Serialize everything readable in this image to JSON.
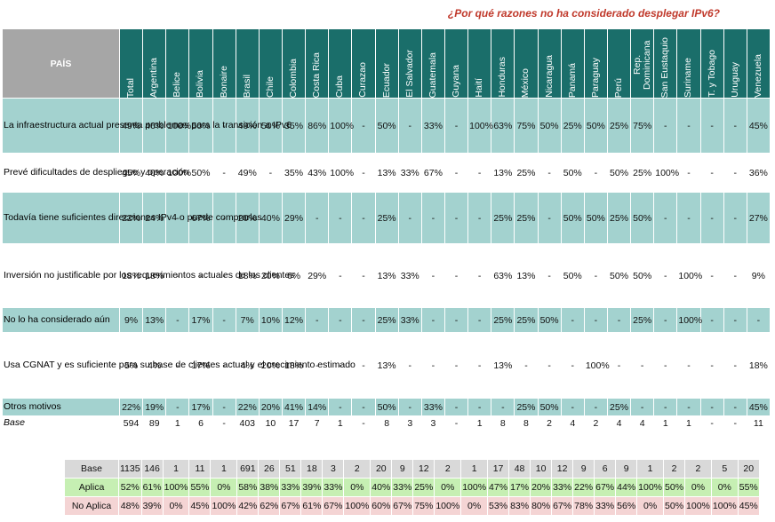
{
  "title": "¿Por qué razones no ha considerado desplegar IPv6?",
  "corner": "PAÍS",
  "countries": [
    "Total",
    "Argentina",
    "Belice",
    "Bolivia",
    "Bonaire",
    "Brasil",
    "Chile",
    "Colombia",
    "Costa Rica",
    "Cuba",
    "Curazao",
    "Ecuador",
    "El Salvador",
    "Guatemala",
    "Guyana",
    "Haití",
    "Honduras",
    "México",
    "Nicaragua",
    "Panamá",
    "Paraguay",
    "Perú",
    "Rep. Dominicana",
    "San Eustaquio",
    "Suriname",
    "T. y Tobago",
    "Uruguay",
    "Venezuela"
  ],
  "rows": [
    {
      "label": "La infraestructura actual presenta problemas para la transición a IPv6",
      "values": [
        "49%",
        "46%",
        "100%",
        "50%",
        "-",
        "49%",
        "50%",
        "35%",
        "86%",
        "100%",
        "-",
        "50%",
        "-",
        "33%",
        "-",
        "100%",
        "63%",
        "75%",
        "50%",
        "25%",
        "50%",
        "25%",
        "75%",
        "-",
        "-",
        "-",
        "-",
        "45%"
      ]
    },
    {
      "label": "Prevé dificultades de despliegue y operación",
      "values": [
        "45%",
        "40%",
        "100%",
        "50%",
        "-",
        "49%",
        "-",
        "35%",
        "43%",
        "100%",
        "-",
        "13%",
        "33%",
        "67%",
        "-",
        "-",
        "13%",
        "25%",
        "-",
        "50%",
        "-",
        "50%",
        "25%",
        "100%",
        "-",
        "-",
        "-",
        "36%"
      ]
    },
    {
      "label": "Todavía tiene suficientes direcciones IPv4 o puede comprarlas",
      "values": [
        "22%",
        "24%",
        "-",
        "67%",
        "-",
        "20%",
        "40%",
        "29%",
        "-",
        "-",
        "-",
        "25%",
        "-",
        "-",
        "-",
        "-",
        "25%",
        "25%",
        "-",
        "50%",
        "50%",
        "25%",
        "50%",
        "-",
        "-",
        "-",
        "-",
        "27%"
      ]
    },
    {
      "label": "Inversión no justificable por los requerimientos actuales de los clientes",
      "values": [
        "18%",
        "18%",
        "-",
        "-",
        "-",
        "18%",
        "20%",
        "6%",
        "29%",
        "-",
        "-",
        "13%",
        "33%",
        "-",
        "-",
        "-",
        "63%",
        "13%",
        "-",
        "50%",
        "-",
        "50%",
        "50%",
        "-",
        "100%",
        "-",
        "-",
        "9%"
      ]
    },
    {
      "label": "No lo ha considerado aún",
      "values": [
        "9%",
        "13%",
        "-",
        "17%",
        "-",
        "7%",
        "10%",
        "12%",
        "-",
        "-",
        "-",
        "25%",
        "33%",
        "-",
        "-",
        "-",
        "25%",
        "25%",
        "50%",
        "-",
        "-",
        "-",
        "25%",
        "-",
        "100%",
        "-",
        "-",
        "-"
      ]
    },
    {
      "label": "Usa CGNAT y es suficiente para su base de clientes actual y el crecimiento estimado",
      "values": [
        "5%",
        "4%",
        "-",
        "17%",
        "-",
        "4%",
        "20%",
        "18%",
        "-",
        "-",
        "-",
        "13%",
        "-",
        "-",
        "-",
        "-",
        "13%",
        "-",
        "-",
        "-",
        "100%",
        "-",
        "-",
        "-",
        "-",
        "-",
        "-",
        "18%"
      ]
    },
    {
      "label": "Otros motivos",
      "values": [
        "22%",
        "19%",
        "-",
        "17%",
        "-",
        "22%",
        "20%",
        "41%",
        "14%",
        "-",
        "-",
        "50%",
        "-",
        "33%",
        "-",
        "-",
        "-",
        "25%",
        "50%",
        "-",
        "-",
        "25%",
        "-",
        "-",
        "-",
        "-",
        "-",
        "45%"
      ]
    }
  ],
  "base_row": {
    "label": "Base",
    "values": [
      "594",
      "89",
      "1",
      "6",
      "-",
      "403",
      "10",
      "17",
      "7",
      "1",
      "-",
      "8",
      "3",
      "3",
      "-",
      "1",
      "8",
      "8",
      "2",
      "4",
      "2",
      "4",
      "4",
      "1",
      "1",
      "-",
      "-",
      "11"
    ]
  },
  "summary": {
    "base": {
      "label": "Base",
      "values": [
        "1135",
        "146",
        "1",
        "11",
        "1",
        "691",
        "26",
        "51",
        "18",
        "3",
        "2",
        "20",
        "9",
        "12",
        "2",
        "1",
        "17",
        "48",
        "10",
        "12",
        "9",
        "6",
        "9",
        "1",
        "2",
        "2",
        "5",
        "20"
      ]
    },
    "aplica": {
      "label": "Aplica",
      "values": [
        "52%",
        "61%",
        "100%",
        "55%",
        "0%",
        "58%",
        "38%",
        "33%",
        "39%",
        "33%",
        "0%",
        "40%",
        "33%",
        "25%",
        "0%",
        "100%",
        "47%",
        "17%",
        "20%",
        "33%",
        "22%",
        "67%",
        "44%",
        "100%",
        "50%",
        "0%",
        "0%",
        "55%"
      ]
    },
    "no_aplica": {
      "label": "No Aplica",
      "values": [
        "48%",
        "39%",
        "0%",
        "45%",
        "100%",
        "42%",
        "62%",
        "67%",
        "61%",
        "67%",
        "100%",
        "60%",
        "67%",
        "75%",
        "100%",
        "0%",
        "53%",
        "83%",
        "80%",
        "67%",
        "78%",
        "33%",
        "56%",
        "0%",
        "50%",
        "100%",
        "100%",
        "45%"
      ]
    }
  }
}
